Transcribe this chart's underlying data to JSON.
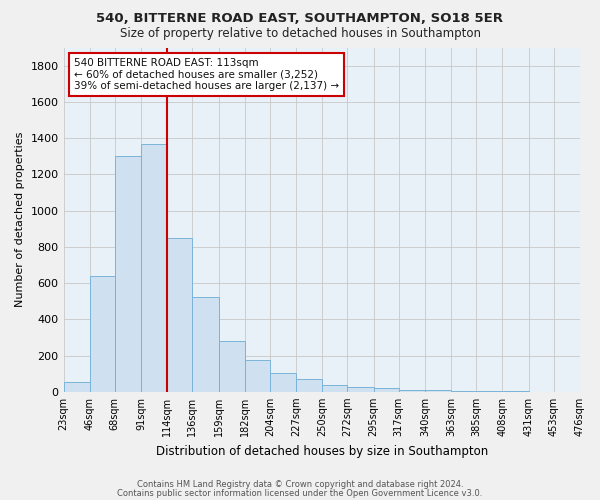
{
  "title": "540, BITTERNE ROAD EAST, SOUTHAMPTON, SO18 5ER",
  "subtitle": "Size of property relative to detached houses in Southampton",
  "xlabel": "Distribution of detached houses by size in Southampton",
  "ylabel": "Number of detached properties",
  "bar_color": "#cfe0f0",
  "bar_edge_color": "#7ab4d8",
  "background_color": "#e8f0f8",
  "fig_background": "#f0f0f0",
  "grid_color": "#c8c8c8",
  "vline_x": 114,
  "vline_color": "#cc0000",
  "annotation_line1": "540 BITTERNE ROAD EAST: 113sqm",
  "annotation_line2": "← 60% of detached houses are smaller (3,252)",
  "annotation_line3": "39% of semi-detached houses are larger (2,137) →",
  "annotation_box_color": "#ffffff",
  "annotation_box_edge": "#cc0000",
  "footer1": "Contains HM Land Registry data © Crown copyright and database right 2024.",
  "footer2": "Contains public sector information licensed under the Open Government Licence v3.0.",
  "bin_edges": [
    23,
    46,
    68,
    91,
    114,
    136,
    159,
    182,
    204,
    227,
    250,
    272,
    295,
    317,
    340,
    363,
    385,
    408,
    431,
    453,
    476
  ],
  "bin_values": [
    55,
    640,
    1300,
    1370,
    850,
    525,
    280,
    175,
    105,
    70,
    35,
    25,
    20,
    10,
    8,
    5,
    3,
    2,
    1,
    1
  ],
  "ylim": [
    0,
    1900
  ],
  "yticks": [
    0,
    200,
    400,
    600,
    800,
    1000,
    1200,
    1400,
    1600,
    1800
  ]
}
